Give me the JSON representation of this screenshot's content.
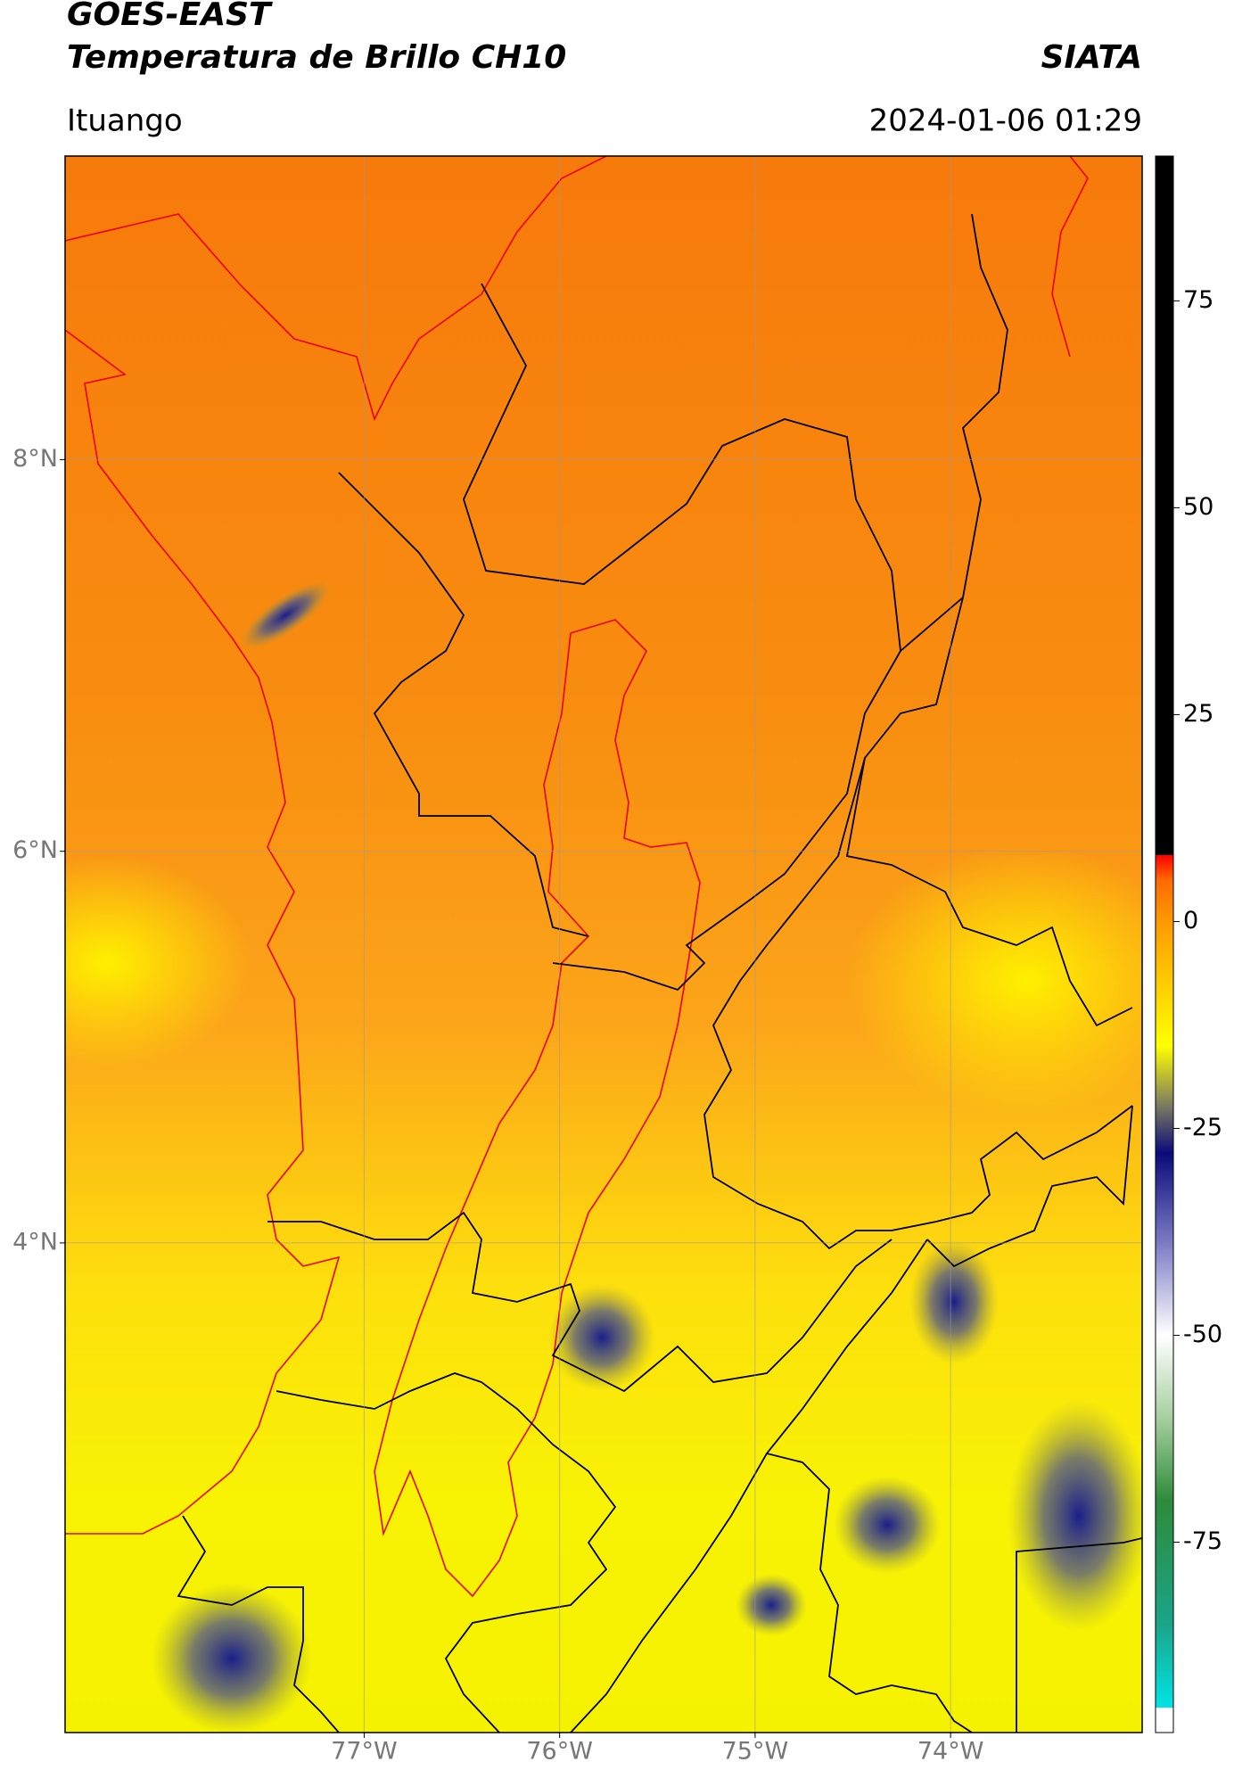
{
  "chart_data": {
    "type": "map",
    "title": "GOES-EAST",
    "subtitle": "Temperatura de Brillo CH10",
    "source": "SIATA",
    "location": "Ituango",
    "datetime": "2024-01-06 01:29",
    "xlim": [
      -78.53,
      -73.02
    ],
    "ylim": [
      1.5,
      9.55
    ],
    "xticks": [
      {
        "value": -77,
        "label": "77°W"
      },
      {
        "value": -76,
        "label": "76°W"
      },
      {
        "value": -75,
        "label": "75°W"
      },
      {
        "value": -74,
        "label": "74°W"
      }
    ],
    "yticks": [
      {
        "value": 8,
        "label": "8°N"
      },
      {
        "value": 6,
        "label": "6°N"
      },
      {
        "value": 4,
        "label": "4°N"
      }
    ],
    "grid": true,
    "colorbar": {
      "lim": [
        -98,
        92.5
      ],
      "ticks": [
        75,
        50,
        25,
        0,
        -25,
        -50,
        -75
      ],
      "colormap": [
        [
          -98,
          "#ffffff"
        ],
        [
          -95,
          "#ffffff"
        ],
        [
          -95,
          "#00e5e5"
        ],
        [
          -85,
          "#1aa58a"
        ],
        [
          -70,
          "#2e8b3a"
        ],
        [
          -60,
          "#a6cfa0"
        ],
        [
          -50,
          "#ffffff"
        ],
        [
          -40,
          "#8888cc"
        ],
        [
          -28,
          "#0a0a7a"
        ],
        [
          -22,
          "#807f60"
        ],
        [
          -15,
          "#ffff00"
        ],
        [
          0,
          "#ff9900"
        ],
        [
          5,
          "#ff6a00"
        ],
        [
          8,
          "#ff0000"
        ],
        [
          8,
          "#000000"
        ],
        [
          92.5,
          "#000000"
        ]
      ]
    }
  }
}
